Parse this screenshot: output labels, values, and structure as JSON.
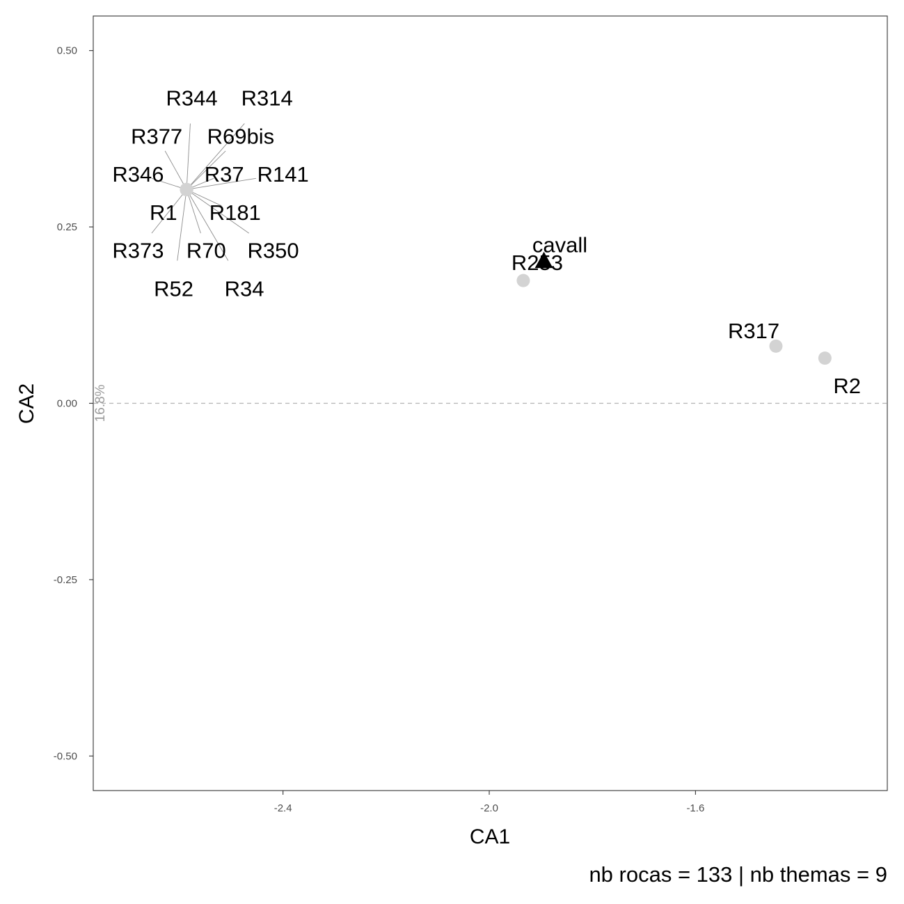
{
  "chart_data": {
    "type": "scatter",
    "xlabel": "CA1",
    "ylabel": "CA2",
    "caption": "nb rocas = 133 | nb themas = 9",
    "axis_annotation": "16.8%",
    "xlim": [
      -2.768,
      -1.228
    ],
    "ylim": [
      -0.549,
      0.549
    ],
    "x_ticks": [
      {
        "value": -2.4,
        "label": "-2.4"
      },
      {
        "value": -2.0,
        "label": "-2.0"
      },
      {
        "value": -1.6,
        "label": "-1.6"
      }
    ],
    "y_ticks": [
      {
        "value": 0.5,
        "label": "0.50"
      },
      {
        "value": 0.25,
        "label": "0.25"
      },
      {
        "value": 0.0,
        "label": "0.00"
      },
      {
        "value": -0.25,
        "label": "-0.25"
      },
      {
        "value": -0.5,
        "label": "-0.50"
      }
    ],
    "reference_line_y": 0.0,
    "grid": false,
    "point_color": "#d3d3d3",
    "theme_color": "#000000",
    "leader_color": "#8c8c8c",
    "rocas": [
      {
        "label": "R344",
        "x": -2.587,
        "y": 0.303,
        "label_x": -2.577,
        "label_y": 0.433
      },
      {
        "label": "R314",
        "x": -2.587,
        "y": 0.303,
        "label_x": -2.431,
        "label_y": 0.433
      },
      {
        "label": "R377",
        "x": -2.587,
        "y": 0.303,
        "label_x": -2.645,
        "label_y": 0.379
      },
      {
        "label": "R69bis",
        "x": -2.587,
        "y": 0.303,
        "label_x": -2.482,
        "label_y": 0.379
      },
      {
        "label": "R346",
        "x": -2.587,
        "y": 0.303,
        "label_x": -2.681,
        "label_y": 0.325
      },
      {
        "label": "R37",
        "x": -2.587,
        "y": 0.303,
        "label_x": -2.514,
        "label_y": 0.325
      },
      {
        "label": "R141",
        "x": -2.587,
        "y": 0.303,
        "label_x": -2.4,
        "label_y": 0.325
      },
      {
        "label": "R1",
        "x": -2.587,
        "y": 0.303,
        "label_x": -2.632,
        "label_y": 0.271
      },
      {
        "label": "R181",
        "x": -2.587,
        "y": 0.303,
        "label_x": -2.493,
        "label_y": 0.271
      },
      {
        "label": "R373",
        "x": -2.587,
        "y": 0.303,
        "label_x": -2.681,
        "label_y": 0.217
      },
      {
        "label": "R70",
        "x": -2.587,
        "y": 0.303,
        "label_x": -2.549,
        "label_y": 0.217
      },
      {
        "label": "R350",
        "x": -2.587,
        "y": 0.303,
        "label_x": -2.419,
        "label_y": 0.217
      },
      {
        "label": "R52",
        "x": -2.587,
        "y": 0.303,
        "label_x": -2.612,
        "label_y": 0.163
      },
      {
        "label": "R34",
        "x": -2.587,
        "y": 0.303,
        "label_x": -2.475,
        "label_y": 0.163
      },
      {
        "label": "R253",
        "x": -1.934,
        "y": 0.174,
        "label_x": -1.907,
        "label_y": 0.2
      },
      {
        "label": "R317",
        "x": -1.444,
        "y": 0.081,
        "label_x": -1.487,
        "label_y": 0.103
      },
      {
        "label": "R2",
        "x": -1.349,
        "y": 0.064,
        "label_x": -1.306,
        "label_y": 0.025
      }
    ],
    "themas": [
      {
        "label": "cavall",
        "x": -1.894,
        "y": 0.202,
        "label_x": -1.863,
        "label_y": 0.225
      }
    ]
  }
}
